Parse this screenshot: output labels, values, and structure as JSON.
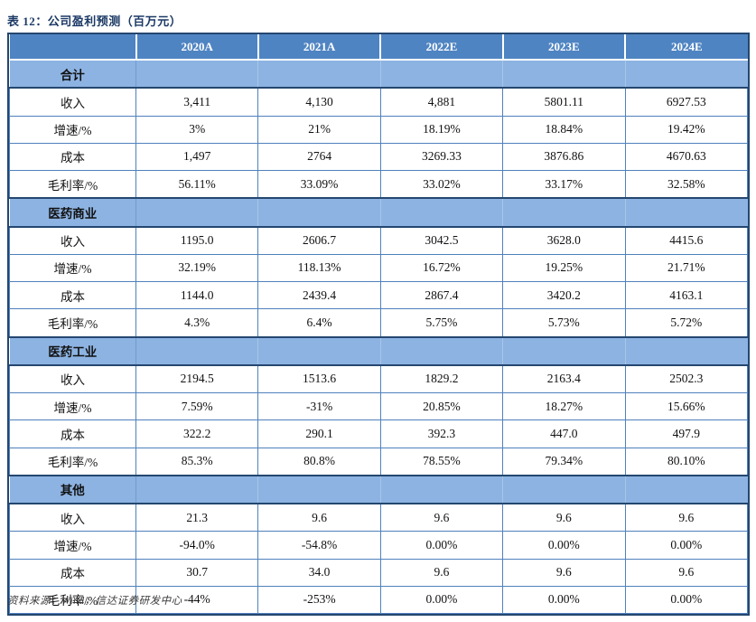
{
  "title": "表 12：公司盈利预测（百万元）",
  "footer": "资料来源：Wind，信达证券研发中心",
  "colors": {
    "title_text": "#1c3a66",
    "header_bg": "#4f84c2",
    "header_text": "#ffffff",
    "section_bg": "#8db3e2",
    "cell_border": "#4f81bd",
    "frame_border": "#24476f"
  },
  "table": {
    "columns": [
      "",
      "2020A",
      "2021A",
      "2022E",
      "2023E",
      "2024E"
    ],
    "sections": [
      {
        "name": "合计",
        "rows": [
          {
            "label": "收入",
            "values": [
              "3,411",
              "4,130",
              "4,881",
              "5801.11",
              "6927.53"
            ]
          },
          {
            "label": "增速/%",
            "values": [
              "3%",
              "21%",
              "18.19%",
              "18.84%",
              "19.42%"
            ]
          },
          {
            "label": "成本",
            "values": [
              "1,497",
              "2764",
              "3269.33",
              "3876.86",
              "4670.63"
            ]
          },
          {
            "label": "毛利率/%",
            "values": [
              "56.11%",
              "33.09%",
              "33.02%",
              "33.17%",
              "32.58%"
            ]
          }
        ]
      },
      {
        "name": "医药商业",
        "rows": [
          {
            "label": "收入",
            "values": [
              "1195.0",
              "2606.7",
              "3042.5",
              "3628.0",
              "4415.6"
            ]
          },
          {
            "label": "增速/%",
            "values": [
              "32.19%",
              "118.13%",
              "16.72%",
              "19.25%",
              "21.71%"
            ]
          },
          {
            "label": "成本",
            "values": [
              "1144.0",
              "2439.4",
              "2867.4",
              "3420.2",
              "4163.1"
            ]
          },
          {
            "label": "毛利率/%",
            "values": [
              "4.3%",
              "6.4%",
              "5.75%",
              "5.73%",
              "5.72%"
            ]
          }
        ]
      },
      {
        "name": "医药工业",
        "rows": [
          {
            "label": "收入",
            "values": [
              "2194.5",
              "1513.6",
              "1829.2",
              "2163.4",
              "2502.3"
            ]
          },
          {
            "label": "增速/%",
            "values": [
              "7.59%",
              "-31%",
              "20.85%",
              "18.27%",
              "15.66%"
            ]
          },
          {
            "label": "成本",
            "values": [
              "322.2",
              "290.1",
              "392.3",
              "447.0",
              "497.9"
            ]
          },
          {
            "label": "毛利率/%",
            "values": [
              "85.3%",
              "80.8%",
              "78.55%",
              "79.34%",
              "80.10%"
            ]
          }
        ]
      },
      {
        "name": "其他",
        "rows": [
          {
            "label": "收入",
            "values": [
              "21.3",
              "9.6",
              "9.6",
              "9.6",
              "9.6"
            ]
          },
          {
            "label": "增速/%",
            "values": [
              "-94.0%",
              "-54.8%",
              "0.00%",
              "0.00%",
              "0.00%"
            ]
          },
          {
            "label": "成本",
            "values": [
              "30.7",
              "34.0",
              "9.6",
              "9.6",
              "9.6"
            ]
          },
          {
            "label": "毛利率/%",
            "values": [
              "-44%",
              "-253%",
              "0.00%",
              "0.00%",
              "0.00%"
            ]
          }
        ]
      }
    ]
  }
}
